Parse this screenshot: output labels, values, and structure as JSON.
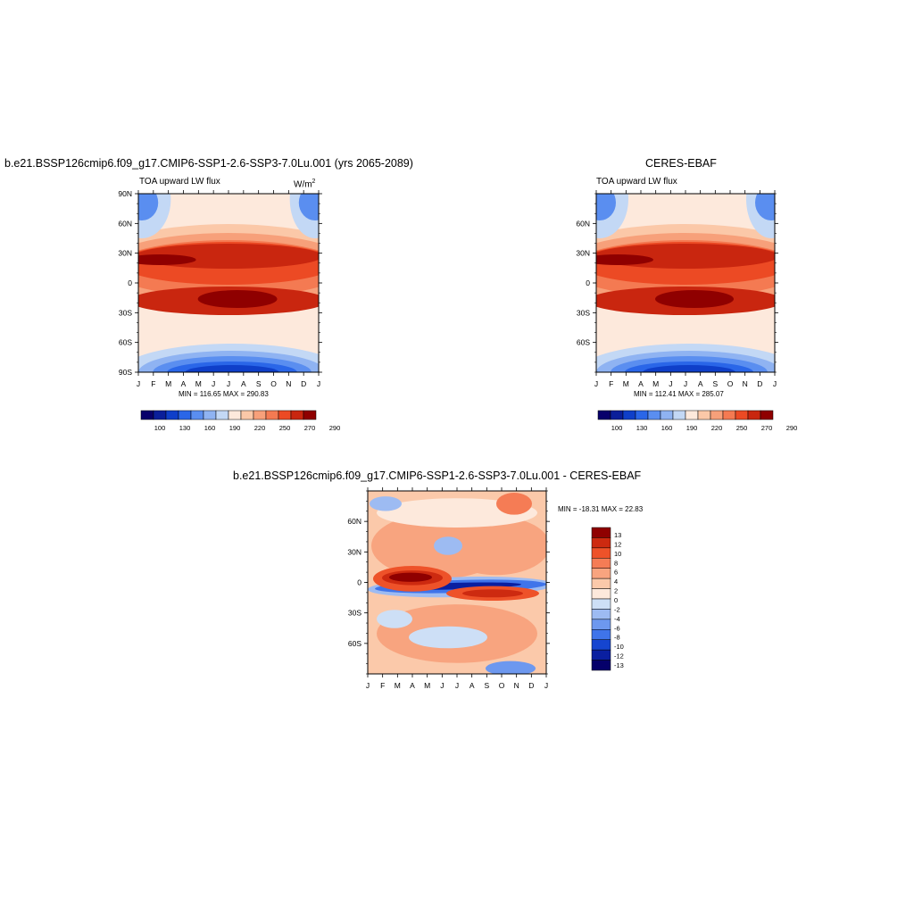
{
  "colors": {
    "abs_scale": [
      "#08006b",
      "#0a1f9a",
      "#0f3fc9",
      "#2a66e8",
      "#5a8ef0",
      "#8fb3f2",
      "#c3d8f5",
      "#fde9dc",
      "#fbc8a8",
      "#f7a07a",
      "#f47a52",
      "#ec4a24",
      "#c9260f",
      "#8f0000"
    ],
    "diff_scale": [
      "#05006a",
      "#0a1fa0",
      "#1545d0",
      "#3f74ea",
      "#6d98ef",
      "#9dbbf2",
      "#cddff6",
      "#fde9dc",
      "#fbc9aa",
      "#f8a47f",
      "#f57c55",
      "#ee5229",
      "#cd2a10",
      "#8f0000"
    ]
  },
  "months": [
    "J",
    "F",
    "M",
    "A",
    "M",
    "J",
    "J",
    "A",
    "S",
    "O",
    "N",
    "D",
    "J"
  ],
  "chart_data": [
    {
      "type": "heatmap",
      "title": "b.e21.BSSP126cmip6.f09_g17.CMIP6-SSP1-2.6-SSP3-7.0Lu.001 (yrs 2065-2089)",
      "left_label": "TOA upward LW flux",
      "units_base": "W/m",
      "units_exp": "2",
      "x": [
        "J",
        "F",
        "M",
        "A",
        "M",
        "J",
        "J",
        "A",
        "S",
        "O",
        "N",
        "D",
        "J"
      ],
      "y_ticks": [
        "90N",
        "60N",
        "30N",
        "0",
        "30S",
        "60S",
        "90S"
      ],
      "y_values": [
        90,
        60,
        30,
        0,
        -30,
        -60,
        -90
      ],
      "minmax": "MIN = 116.65  MAX = 290.83",
      "min": 116.65,
      "max": 290.83,
      "colorbar_labels": [
        "100",
        "130",
        "160",
        "190",
        "220",
        "250",
        "270",
        "290"
      ]
    },
    {
      "type": "heatmap",
      "title": "CERES-EBAF",
      "left_label": "TOA upward LW flux",
      "x": [
        "J",
        "F",
        "M",
        "A",
        "M",
        "J",
        "J",
        "A",
        "S",
        "O",
        "N",
        "D",
        "J"
      ],
      "y_ticks": [
        "60N",
        "30N",
        "0",
        "30S",
        "60S"
      ],
      "y_values": [
        60,
        30,
        0,
        -30,
        -60
      ],
      "minmax": "MIN = 112.41  MAX = 285.07",
      "min": 112.41,
      "max": 285.07,
      "colorbar_labels": [
        "100",
        "130",
        "160",
        "190",
        "220",
        "250",
        "270",
        "290"
      ]
    },
    {
      "type": "heatmap",
      "title": "b.e21.BSSP126cmip6.f09_g17.CMIP6-SSP1-2.6-SSP3-7.0Lu.001 - CERES-EBAF",
      "x": [
        "J",
        "F",
        "M",
        "A",
        "M",
        "J",
        "J",
        "A",
        "S",
        "O",
        "N",
        "D",
        "J"
      ],
      "y_ticks": [
        "60N",
        "30N",
        "0",
        "30S",
        "60S"
      ],
      "y_values": [
        60,
        30,
        0,
        -30,
        -60
      ],
      "minmax": "MIN = -18.31  MAX =  22.83",
      "min": -18.31,
      "max": 22.83,
      "colorbar_labels": [
        "13",
        "12",
        "10",
        "8",
        "6",
        "4",
        "2",
        "0",
        "-2",
        "-4",
        "-6",
        "-8",
        "-10",
        "-12",
        "-13"
      ]
    }
  ]
}
